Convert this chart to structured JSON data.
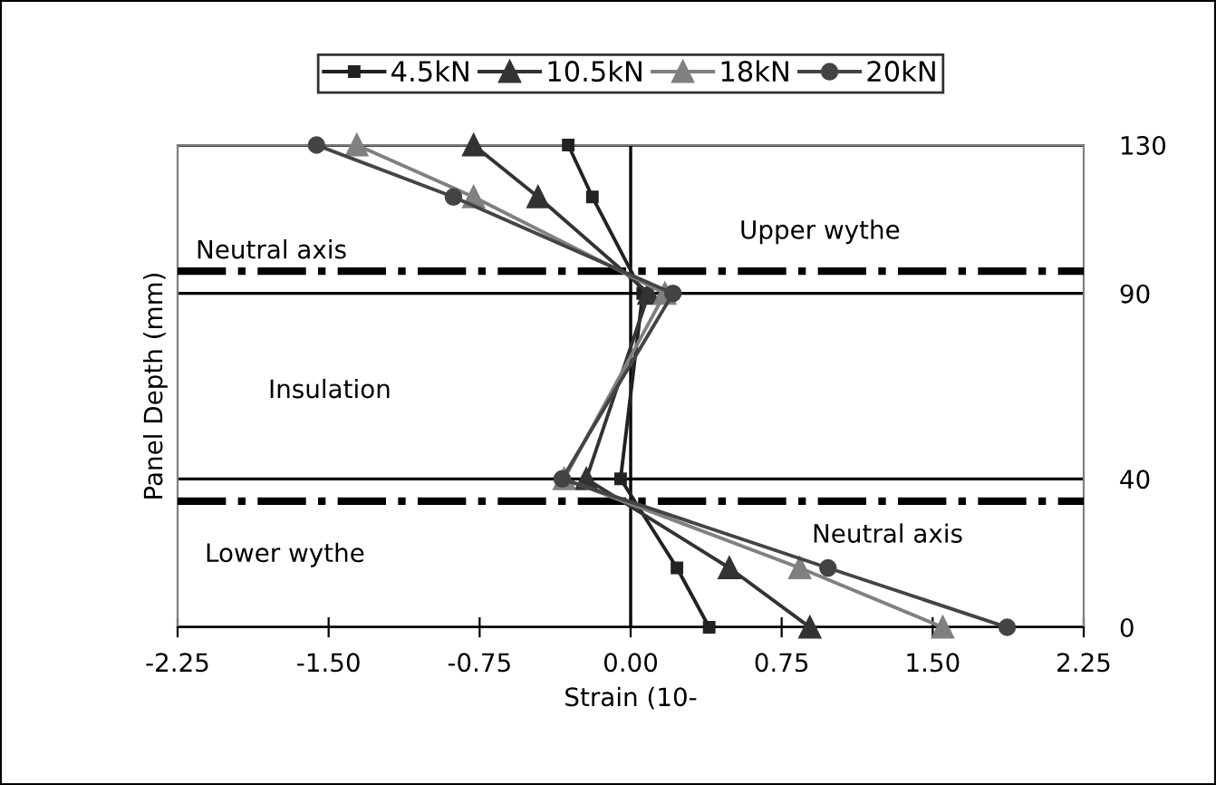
{
  "chart_data": {
    "type": "line",
    "xlabel": "Strain (10-",
    "ylabel": "Panel Depth (mm)",
    "xlim": [
      -2.25,
      2.25
    ],
    "xticks": [
      {
        "value": -2.25,
        "label": "-2.25"
      },
      {
        "value": -1.5,
        "label": "-1.50"
      },
      {
        "value": -0.75,
        "label": "-0.75"
      },
      {
        "value": 0,
        "label": "0.00"
      },
      {
        "value": 0.75,
        "label": "0.75"
      },
      {
        "value": 1.5,
        "label": "1.50"
      },
      {
        "value": 2.25,
        "label": "2.25"
      }
    ],
    "ylim": [
      0,
      130
    ],
    "yticks": [
      0,
      40,
      90,
      130
    ],
    "legend": "top",
    "grid": "y",
    "line_style": "solid",
    "series": [
      {
        "name": "4.5kN",
        "color": "#222222",
        "marker": "square",
        "x": [
          -0.31,
          -0.19,
          0.06,
          -0.05,
          0.23,
          0.39
        ],
        "values": [
          130,
          116,
          90,
          40,
          16,
          0
        ]
      },
      {
        "name": "10.5kN",
        "color": "#333333",
        "marker": "triangle",
        "x": [
          -0.78,
          -0.46,
          0.09,
          -0.22,
          0.49,
          0.89
        ],
        "values": [
          130,
          116,
          90,
          40,
          16,
          0
        ]
      },
      {
        "name": "18kN",
        "color": "#808080",
        "marker": "triangle",
        "x": [
          -1.36,
          -0.78,
          0.17,
          -0.33,
          0.84,
          1.55
        ],
        "values": [
          130,
          116,
          90,
          40,
          16,
          0
        ]
      },
      {
        "name": "20kN",
        "color": "#444444",
        "marker": "circle",
        "x": [
          -1.56,
          -0.88,
          0.21,
          -0.34,
          0.98,
          1.87
        ],
        "values": [
          130,
          116,
          90,
          40,
          16,
          0
        ]
      }
    ],
    "ref_lines": [
      {
        "axis": "x",
        "value": 0,
        "color": "#000000",
        "line_style": "solid"
      },
      {
        "axis": "y",
        "value": 96,
        "label": "Neutral axis",
        "color": "#000000",
        "line_style": "dashdot"
      },
      {
        "axis": "y",
        "value": 34,
        "label": "Neutral axis",
        "color": "#000000",
        "line_style": "dashdot"
      }
    ],
    "annotations": [
      "Upper wythe",
      "Insulation",
      "Lower wythe"
    ]
  }
}
